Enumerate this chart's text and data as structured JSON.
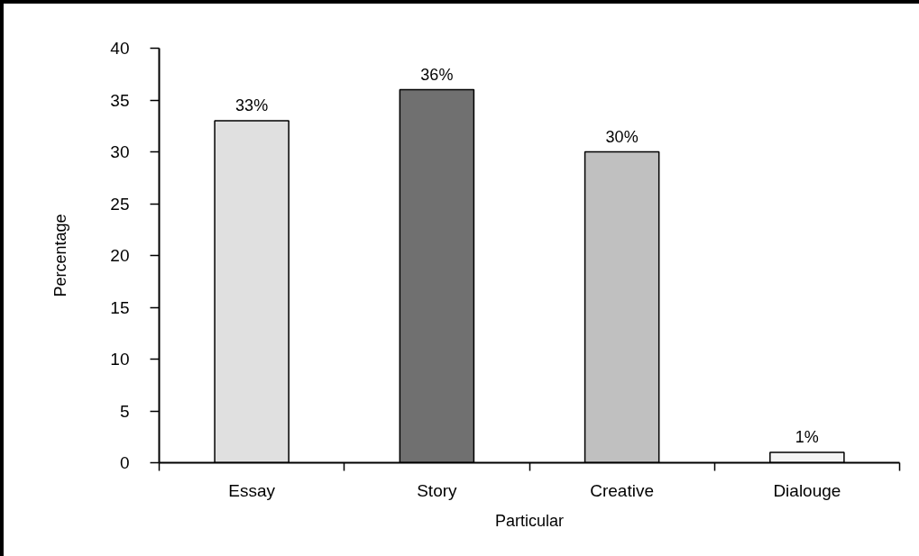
{
  "chart_data": {
    "type": "bar",
    "xlabel": "Particular",
    "ylabel": "Percentage",
    "categories": [
      "Essay",
      "Story",
      "Creative",
      "Dialouge"
    ],
    "values": [
      33,
      36,
      30,
      1
    ],
    "value_labels": [
      "33%",
      "36%",
      "30%",
      "1%"
    ],
    "colors": [
      "#e0e0e0",
      "#707070",
      "#c0c0c0",
      "#f4f4f4"
    ],
    "ylim": [
      0,
      40
    ],
    "yticks": [
      0,
      5,
      10,
      15,
      20,
      25,
      30,
      35,
      40
    ]
  }
}
